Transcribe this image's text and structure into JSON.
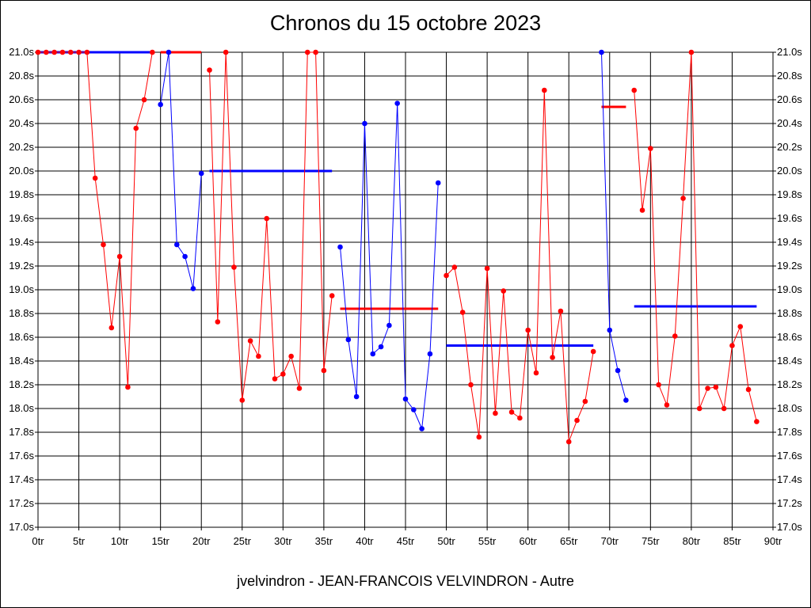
{
  "chart_data": {
    "type": "line",
    "title": "Chronos du 15 octobre 2023",
    "footer": "jvelvindron - JEAN-FRANCOIS VELVINDRON - Autre",
    "xlim": [
      0,
      90
    ],
    "ylim": [
      17.0,
      21.0
    ],
    "x_ticks": [
      0,
      5,
      10,
      15,
      20,
      25,
      30,
      35,
      40,
      45,
      50,
      55,
      60,
      65,
      70,
      75,
      80,
      85,
      90
    ],
    "x_tick_labels": [
      "0tr",
      "5tr",
      "10tr",
      "15tr",
      "20tr",
      "25tr",
      "30tr",
      "35tr",
      "40tr",
      "45tr",
      "50tr",
      "55tr",
      "60tr",
      "65tr",
      "70tr",
      "75tr",
      "80tr",
      "85tr",
      "90tr"
    ],
    "y_ticks": [
      17.0,
      17.2,
      17.4,
      17.6,
      17.8,
      18.0,
      18.2,
      18.4,
      18.6,
      18.8,
      19.0,
      19.2,
      19.4,
      19.6,
      19.8,
      20.0,
      20.2,
      20.4,
      20.6,
      20.8,
      21.0
    ],
    "y_tick_labels": [
      "17.0s",
      "17.2s",
      "17.4s",
      "17.6s",
      "17.8s",
      "18.0s",
      "18.2s",
      "18.4s",
      "18.6s",
      "18.8s",
      "19.0s",
      "19.2s",
      "19.4s",
      "19.6s",
      "19.8s",
      "20.0s",
      "20.2s",
      "20.4s",
      "20.6s",
      "20.8s",
      "21.0s"
    ],
    "grid": true,
    "colors": {
      "red": "#ff0000",
      "blue": "#0000ff"
    },
    "segments": [
      {
        "color": "red",
        "points": [
          [
            0,
            21.0
          ],
          [
            1,
            21.0
          ],
          [
            2,
            21.0
          ],
          [
            3,
            21.0
          ],
          [
            4,
            21.0
          ],
          [
            5,
            21.0
          ],
          [
            6,
            21.0
          ],
          [
            7,
            19.94
          ],
          [
            8,
            19.38
          ],
          [
            9,
            18.68
          ],
          [
            10,
            19.28
          ],
          [
            11,
            18.18
          ],
          [
            12,
            20.36
          ],
          [
            13,
            20.6
          ],
          [
            14,
            21.0
          ]
        ]
      },
      {
        "color": "blue",
        "points": [
          [
            15,
            20.56
          ],
          [
            16,
            21.0
          ],
          [
            17,
            19.38
          ],
          [
            18,
            19.28
          ],
          [
            19,
            19.01
          ],
          [
            20,
            19.98
          ]
        ]
      },
      {
        "color": "red",
        "points": [
          [
            21,
            20.85
          ],
          [
            22,
            18.73
          ],
          [
            23,
            21.0
          ],
          [
            24,
            19.19
          ],
          [
            25,
            18.07
          ],
          [
            26,
            18.57
          ],
          [
            27,
            18.44
          ],
          [
            28,
            19.6
          ],
          [
            29,
            18.25
          ],
          [
            30,
            18.29
          ],
          [
            31,
            18.44
          ],
          [
            32,
            18.17
          ],
          [
            33,
            21.0
          ],
          [
            34,
            21.0
          ],
          [
            35,
            18.32
          ],
          [
            36,
            18.95
          ]
        ]
      },
      {
        "color": "blue",
        "points": [
          [
            37,
            19.36
          ],
          [
            38,
            18.58
          ],
          [
            39,
            18.1
          ],
          [
            40,
            20.4
          ],
          [
            41,
            18.46
          ],
          [
            42,
            18.52
          ],
          [
            43,
            18.7
          ],
          [
            44,
            20.57
          ],
          [
            45,
            18.08
          ],
          [
            46,
            17.99
          ],
          [
            47,
            17.83
          ],
          [
            48,
            18.46
          ],
          [
            49,
            19.9
          ]
        ]
      },
      {
        "color": "red",
        "points": [
          [
            50,
            19.12
          ],
          [
            51,
            19.19
          ],
          [
            52,
            18.81
          ],
          [
            53,
            18.2
          ],
          [
            54,
            17.76
          ],
          [
            55,
            19.18
          ],
          [
            56,
            17.96
          ],
          [
            57,
            18.99
          ],
          [
            58,
            17.97
          ],
          [
            59,
            17.92
          ],
          [
            60,
            18.66
          ],
          [
            61,
            18.3
          ],
          [
            62,
            20.68
          ],
          [
            63,
            18.43
          ],
          [
            64,
            18.82
          ],
          [
            65,
            17.72
          ],
          [
            66,
            17.9
          ],
          [
            67,
            18.06
          ],
          [
            68,
            18.48
          ]
        ]
      },
      {
        "color": "blue",
        "points": [
          [
            69,
            21.0
          ],
          [
            70,
            18.66
          ],
          [
            71,
            18.32
          ],
          [
            72,
            18.07
          ]
        ]
      },
      {
        "color": "red",
        "points": [
          [
            73,
            20.68
          ],
          [
            74,
            19.67
          ],
          [
            75,
            20.19
          ],
          [
            76,
            18.2
          ],
          [
            77,
            18.03
          ],
          [
            78,
            18.61
          ],
          [
            79,
            19.77
          ],
          [
            80,
            21.0
          ],
          [
            81,
            18.0
          ],
          [
            82,
            18.17
          ],
          [
            83,
            18.18
          ],
          [
            84,
            18.0
          ],
          [
            85,
            18.53
          ],
          [
            86,
            18.69
          ],
          [
            87,
            18.16
          ],
          [
            88,
            17.89
          ]
        ]
      }
    ],
    "averages": [
      {
        "color": "blue",
        "x": [
          0,
          14
        ],
        "y": 21.0
      },
      {
        "color": "red",
        "x": [
          15,
          20
        ],
        "y": 21.0
      },
      {
        "color": "blue",
        "x": [
          21,
          36
        ],
        "y": 20.0
      },
      {
        "color": "red",
        "x": [
          37,
          49
        ],
        "y": 18.84
      },
      {
        "color": "blue",
        "x": [
          50,
          68
        ],
        "y": 18.53
      },
      {
        "color": "red",
        "x": [
          69,
          72
        ],
        "y": 20.54
      },
      {
        "color": "blue",
        "x": [
          73,
          88
        ],
        "y": 18.86
      }
    ]
  }
}
